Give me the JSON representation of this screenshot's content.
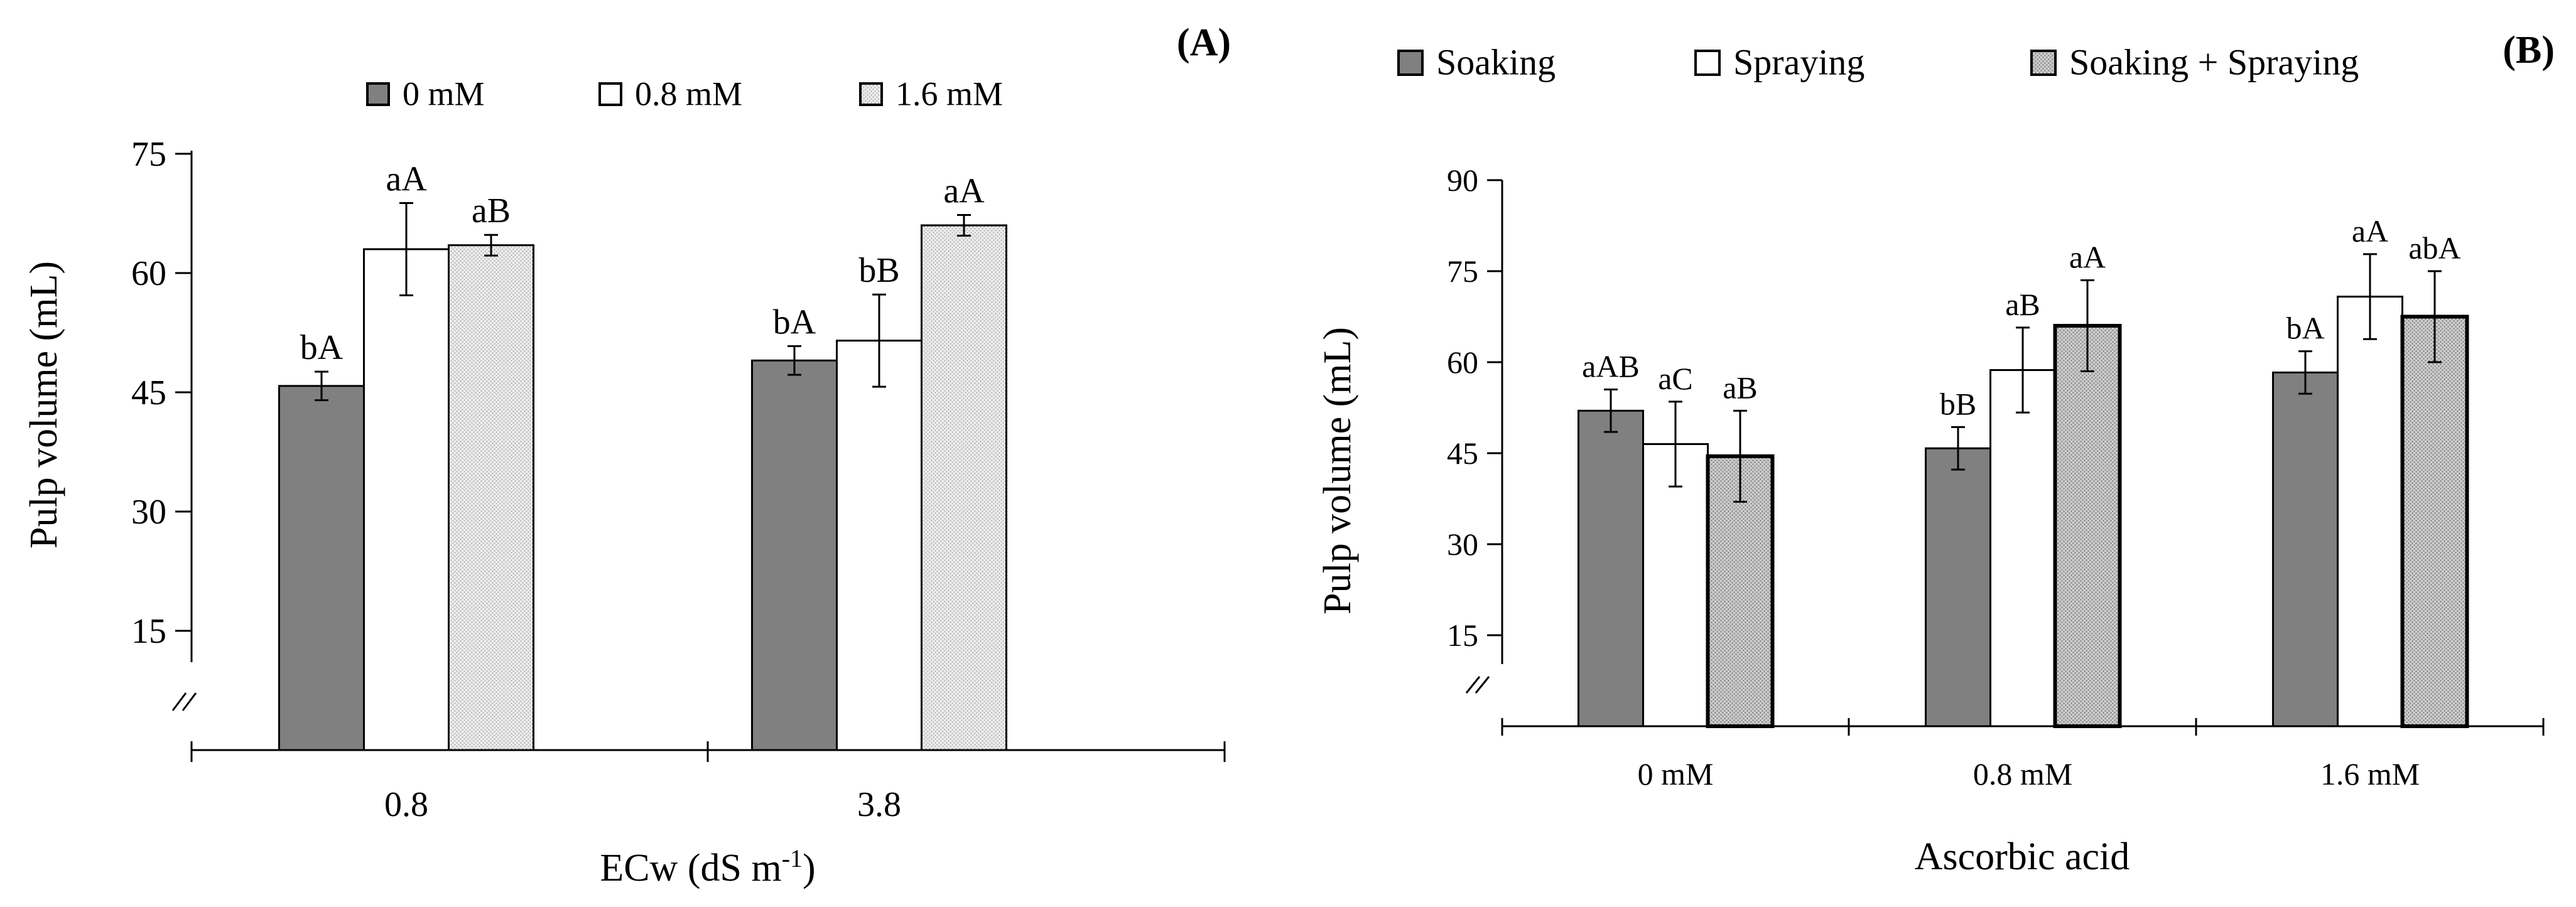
{
  "chart_data": [
    {
      "panel": "(A)",
      "type": "bar",
      "title": "",
      "xlabel": "ECw (dS m",
      "xlabel_superscript": "-1",
      "xlabel_close": ")",
      "ylabel": "Pulp volume (mL)",
      "ylim": [
        0,
        75
      ],
      "axis_break": true,
      "y_ticks": [
        15,
        30,
        45,
        60,
        75
      ],
      "categories": [
        "0.8",
        "3.8"
      ],
      "legend_position": "top-center",
      "series": [
        {
          "name": "0 mM",
          "fill": "#808080",
          "pattern": "solid",
          "values": [
            45.8,
            49.0
          ],
          "errors": [
            1.8,
            1.8
          ],
          "labels": [
            "bA",
            "bA"
          ]
        },
        {
          "name": "0.8 mM",
          "fill": "#ffffff",
          "pattern": "solid",
          "values": [
            63.0,
            51.5
          ],
          "errors": [
            5.8,
            5.8
          ],
          "labels": [
            "aA",
            "bB"
          ]
        },
        {
          "name": "1.6 mM",
          "fill": "#e8e8e8",
          "pattern": "dotted",
          "values": [
            63.5,
            66.0
          ],
          "errors": [
            1.3,
            1.3
          ],
          "labels": [
            "aB",
            "aA"
          ]
        }
      ]
    },
    {
      "panel": "(B)",
      "type": "bar",
      "title": "",
      "xlabel": "Ascorbic acid",
      "ylabel": "Pulp volume (mL)",
      "ylim": [
        0,
        90
      ],
      "axis_break": true,
      "y_ticks": [
        15,
        30,
        45,
        60,
        75,
        90
      ],
      "categories": [
        "0 mM",
        "0.8 mM",
        "1.6 mM"
      ],
      "legend_position": "top",
      "series": [
        {
          "name": "Soaking",
          "fill": "#808080",
          "pattern": "solid",
          "values": [
            52.0,
            45.8,
            58.3
          ],
          "errors": [
            3.5,
            3.5,
            3.5
          ],
          "labels": [
            "aAB",
            "bB",
            "bA"
          ]
        },
        {
          "name": "Spraying",
          "fill": "#ffffff",
          "pattern": "solid",
          "values": [
            46.5,
            58.7,
            70.8
          ],
          "errors": [
            7.0,
            7.0,
            7.0
          ],
          "labels": [
            "aC",
            "aB",
            "aA"
          ]
        },
        {
          "name": "Soaking + Spraying",
          "fill": "#c8c8c8",
          "pattern": "dotted",
          "values": [
            44.5,
            66.0,
            67.5
          ],
          "errors": [
            7.5,
            7.5,
            7.5
          ],
          "labels": [
            "aB",
            "aA",
            "abA"
          ]
        }
      ]
    }
  ]
}
